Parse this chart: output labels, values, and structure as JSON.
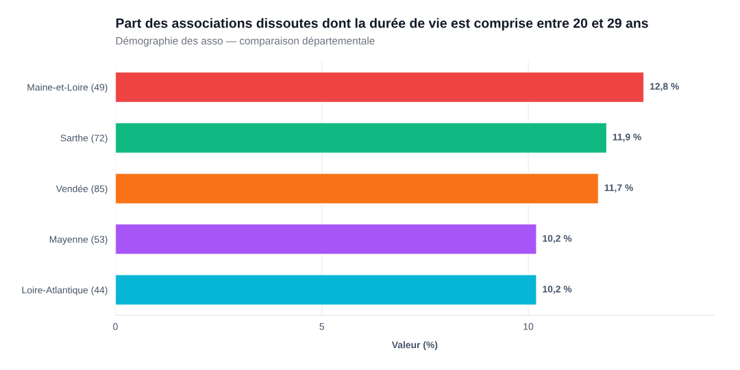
{
  "chart_data": {
    "type": "bar",
    "orientation": "horizontal",
    "title": "Part des associations dissoutes dont la durée de vie est comprise entre 20 et 29 ans",
    "subtitle": "Démographie des asso — comparaison départementale",
    "xlabel": "Valeur (%)",
    "categories": [
      "Maine-et-Loire (49)",
      "Sarthe (72)",
      "Vendée (85)",
      "Mayenne (53)",
      "Loire-Atlantique (44)"
    ],
    "values": [
      12.8,
      11.9,
      11.7,
      10.2,
      10.2
    ],
    "colors": [
      "#ef4444",
      "#10b981",
      "#f97316",
      "#a855f7",
      "#06b6d4"
    ],
    "value_labels": [
      "12,8 %",
      "11,9 %",
      "11,7 %",
      "10,2 %",
      "10,2 %"
    ],
    "xlim": [
      0,
      14.5
    ],
    "xticks": [
      0,
      5,
      10
    ],
    "grid": "x",
    "legend": false
  }
}
